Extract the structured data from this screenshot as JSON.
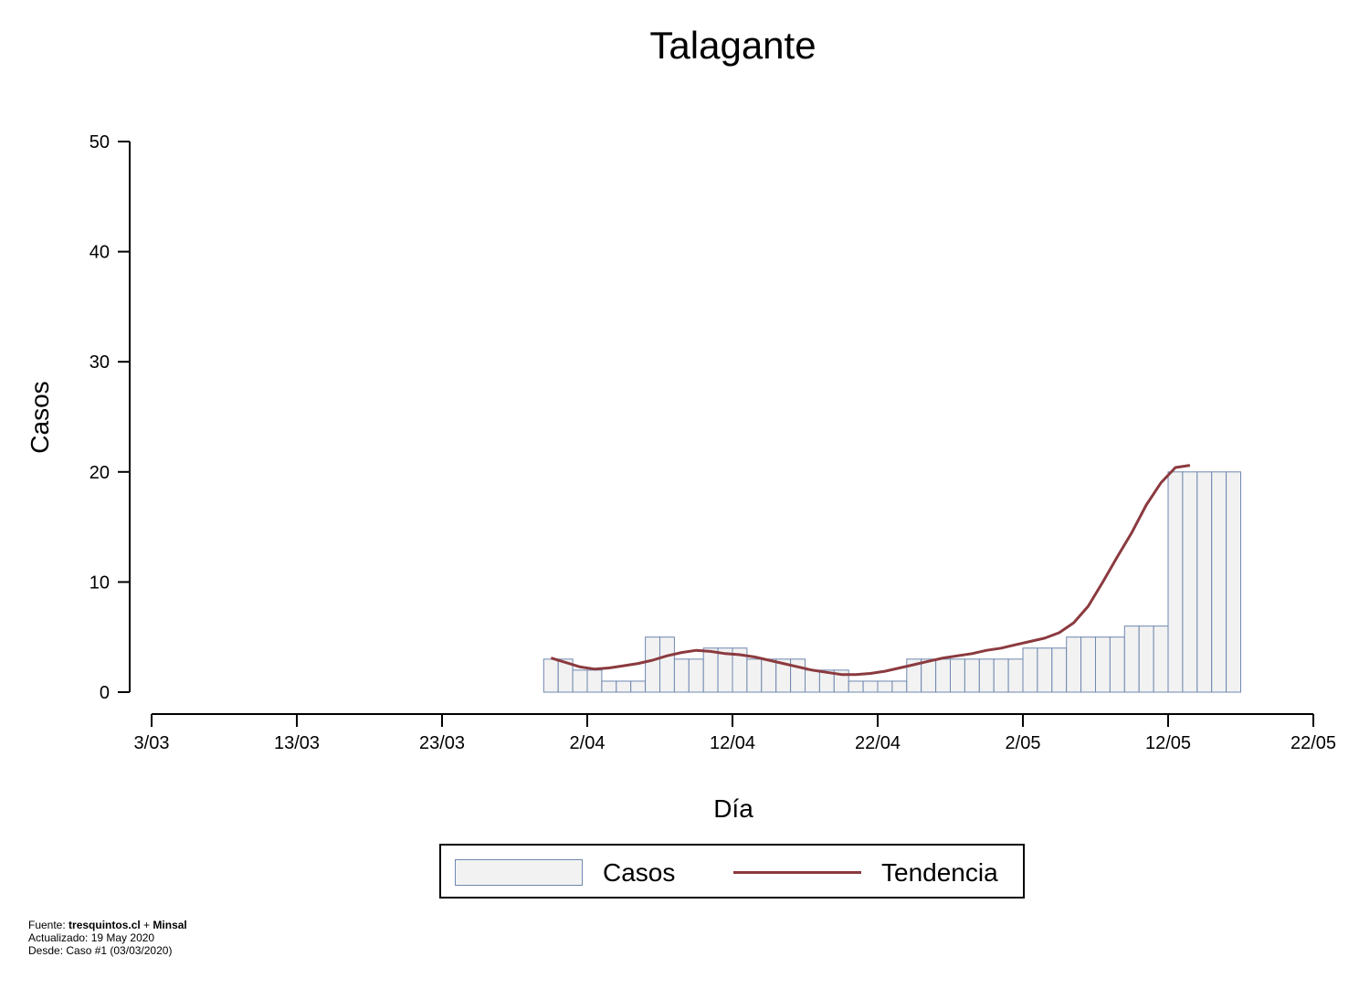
{
  "title": "Talagante",
  "chart_data": {
    "type": "bar",
    "title": "Talagante",
    "xlabel": "Día",
    "ylabel": "Casos",
    "ylim": [
      0,
      50
    ],
    "y_ticks": [
      0,
      10,
      20,
      30,
      40,
      50
    ],
    "x_tick_labels": [
      "3/03",
      "13/03",
      "23/03",
      "2/04",
      "12/04",
      "22/04",
      "2/05",
      "12/05",
      "22/05"
    ],
    "x_day_range": [
      0,
      80
    ],
    "x_tick_days": [
      0,
      10,
      20,
      30,
      40,
      50,
      60,
      70,
      80
    ],
    "bar_start_day": 27,
    "series": [
      {
        "name": "Casos",
        "values": [
          3,
          3,
          2,
          2,
          1,
          1,
          1,
          5,
          5,
          3,
          3,
          4,
          4,
          4,
          3,
          3,
          3,
          3,
          2,
          2,
          2,
          1,
          1,
          1,
          1,
          3,
          3,
          3,
          3,
          3,
          3,
          3,
          3,
          4,
          4,
          4,
          5,
          5,
          5,
          5,
          6,
          6,
          6,
          20,
          20,
          20,
          20,
          20
        ]
      },
      {
        "name": "Tendencia",
        "values": [
          3.1,
          2.7,
          2.3,
          2.1,
          2.2,
          2.4,
          2.6,
          2.9,
          3.3,
          3.6,
          3.8,
          3.7,
          3.5,
          3.4,
          3.2,
          2.9,
          2.6,
          2.3,
          2.0,
          1.8,
          1.6,
          1.6,
          1.7,
          1.9,
          2.2,
          2.5,
          2.8,
          3.1,
          3.3,
          3.5,
          3.8,
          4.0,
          4.3,
          4.6,
          4.9,
          5.4,
          6.3,
          7.8,
          10.0,
          12.3,
          14.5,
          17.0,
          19.0,
          20.4,
          20.6
        ]
      }
    ],
    "trend_start_day": 27.5,
    "legend_position": "bottom-center",
    "grid": false
  },
  "legend": {
    "casos_label": "Casos",
    "tendencia_label": "Tendencia"
  },
  "footer": {
    "line1_prefix": "Fuente: ",
    "source_a": "tresquintos.cl",
    "joiner": " + ",
    "source_b": "Minsal",
    "line2": "Actualizado: 19 May 2020",
    "line3": "Desde: Caso #1  (03/03/2020)"
  },
  "colors": {
    "bar_fill": "#f2f2f2",
    "bar_stroke": "#6f87b0",
    "trend": "#8b3a3f"
  }
}
